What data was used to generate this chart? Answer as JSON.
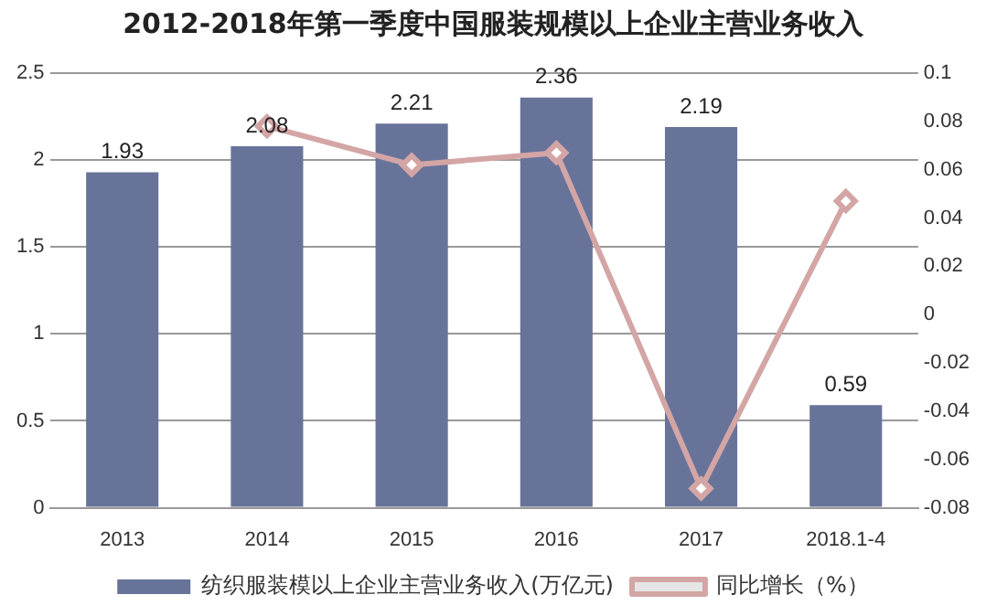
{
  "chart_data": {
    "type": "bar",
    "title": "2012-2018年第一季度中国服装规模以上企业主营业务收入",
    "categories": [
      "2013",
      "2014",
      "2015",
      "2016",
      "2017",
      "2018.1-4"
    ],
    "series": [
      {
        "name": "纺织服装模以上企业主营业务收入(万亿元)",
        "color": "#68739a",
        "values": [
          1.93,
          2.08,
          2.21,
          2.36,
          2.19,
          0.59
        ],
        "value_labels": [
          "1.93",
          "2.08",
          "2.21",
          "2.36",
          "2.19",
          "0.59"
        ]
      },
      {
        "name": "同比增长（%）",
        "type": "line",
        "axis": "y2",
        "color": "#d4a5a5",
        "marker": "diamond",
        "values": [
          null,
          0.078,
          0.062,
          0.067,
          -0.072,
          0.047
        ]
      }
    ],
    "ylim": [
      0,
      2.5
    ],
    "yticks": [
      0,
      {
        "value": 0.5,
        "label": "0.5"
      },
      1,
      {
        "value": 1.5,
        "label": "1.5"
      },
      2,
      {
        "value": 2.5,
        "label": "2.5"
      }
    ],
    "y2lim": [
      -0.08,
      0.1
    ],
    "y2ticks": [
      {
        "value": -0.08,
        "label": "-0.08"
      },
      {
        "value": -0.06,
        "label": "-0.06"
      },
      {
        "value": -0.04,
        "label": "-0.04"
      },
      {
        "value": -0.02,
        "label": "-0.02"
      },
      0,
      {
        "value": 0.02,
        "label": "0.02"
      },
      {
        "value": 0.04,
        "label": "0.04"
      },
      {
        "value": 0.06,
        "label": "0.06"
      },
      {
        "value": 0.08,
        "label": "0.08"
      },
      {
        "value": 0.1,
        "label": "0.1"
      }
    ],
    "grid": "y",
    "legend": "bottom"
  }
}
